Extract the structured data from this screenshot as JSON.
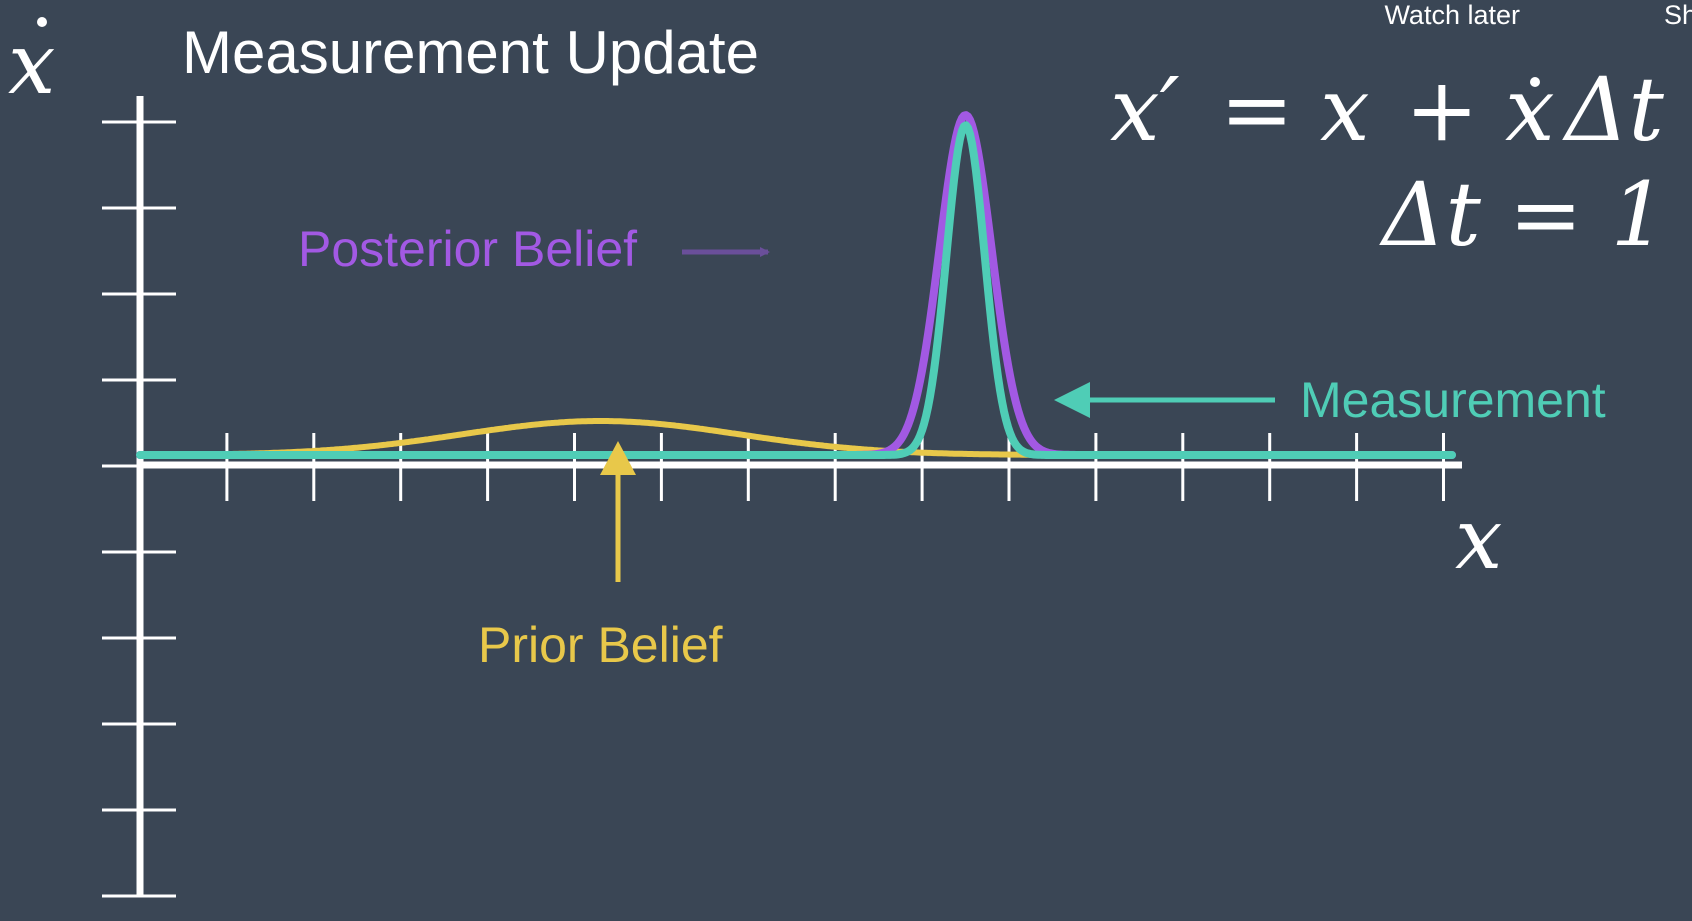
{
  "overlay": {
    "watch_later": "Watch later",
    "share": "Share"
  },
  "slide": {
    "title": "Measurement Update",
    "y_axis_symbol": "x",
    "x_axis_symbol": "x",
    "equation_line1": {
      "lhs": "x′",
      "eq": "=",
      "x": "x",
      "plus": "+",
      "xdot": "x",
      "delta": "Δt"
    },
    "equation_line2": "Δt = 1"
  },
  "labels": {
    "posterior": "Posterior Belief",
    "measurement": "Measurement",
    "prior": "Prior Belief"
  },
  "colors": {
    "background": "#3a4655",
    "axis": "#ffffff",
    "prior": "#e8c84a",
    "measurement": "#4fcdb6",
    "posterior": "#a259e3",
    "posterior_arrow": "#6a4f9a"
  },
  "chart_data": {
    "type": "line",
    "x_ticks": 15,
    "y_ticks": 10,
    "grid": false,
    "series": [
      {
        "name": "Prior Belief",
        "mean": 5.3,
        "sigma": 1.6,
        "peak": 0.1
      },
      {
        "name": "Measurement",
        "mean": 9.5,
        "sigma": 0.22,
        "peak": 0.97
      },
      {
        "name": "Posterior Belief",
        "mean": 9.5,
        "sigma": 0.3,
        "peak": 1.0
      }
    ],
    "xlim": [
      0,
      15.5
    ],
    "ylim": [
      0,
      1.0
    ]
  }
}
